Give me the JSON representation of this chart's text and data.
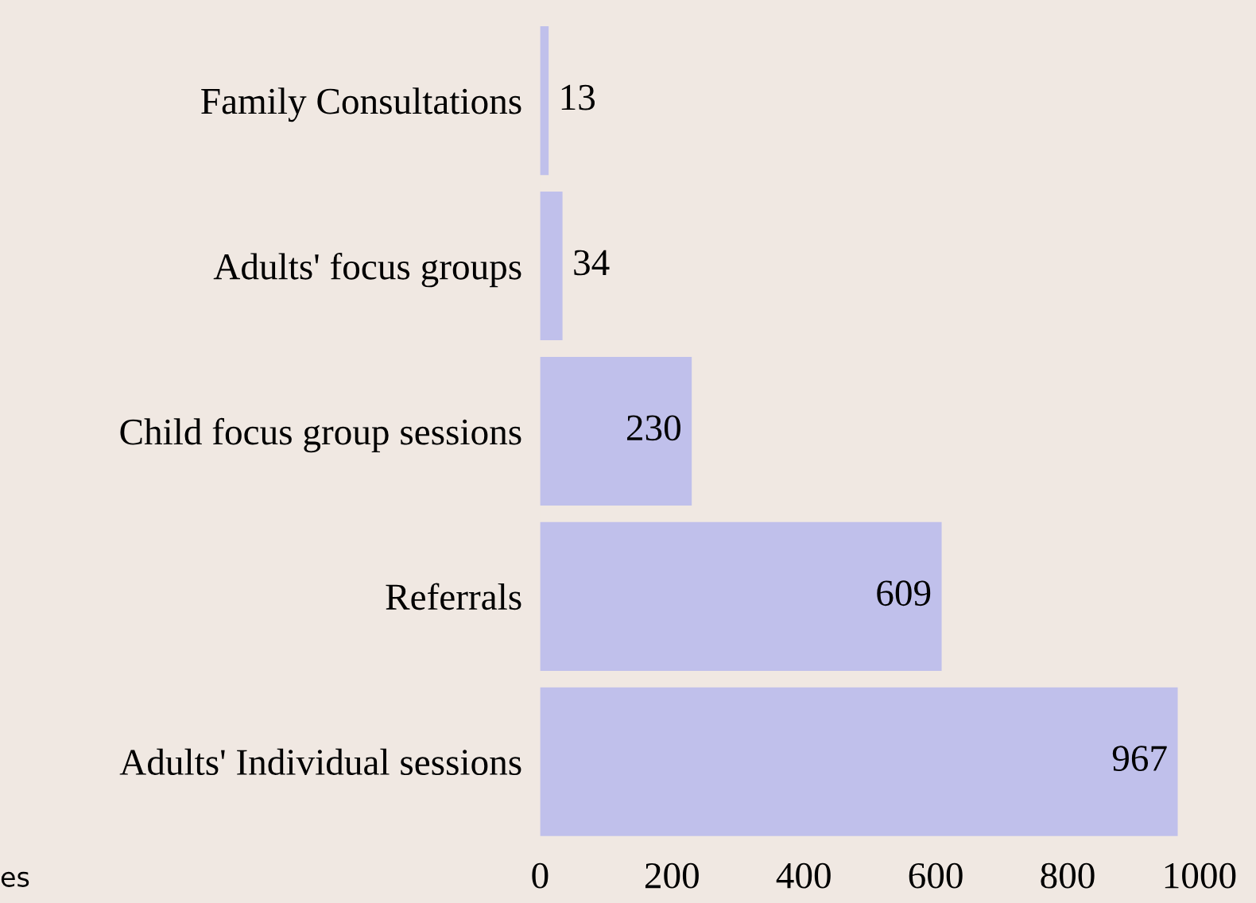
{
  "chart_data": {
    "type": "bar",
    "orientation": "horizontal",
    "categories": [
      "Family Consultations",
      "Adults' focus groups",
      "Child focus group sessions",
      "Referrals",
      "Adults' Individual sessions"
    ],
    "values": [
      13,
      34,
      230,
      609,
      967
    ],
    "color": "#c0c0eb",
    "xlim": [
      0,
      1000
    ],
    "xticks": [
      0,
      200,
      400,
      600,
      800,
      1000
    ],
    "data_labels": true,
    "grid": false,
    "annotations": [
      "es"
    ]
  }
}
